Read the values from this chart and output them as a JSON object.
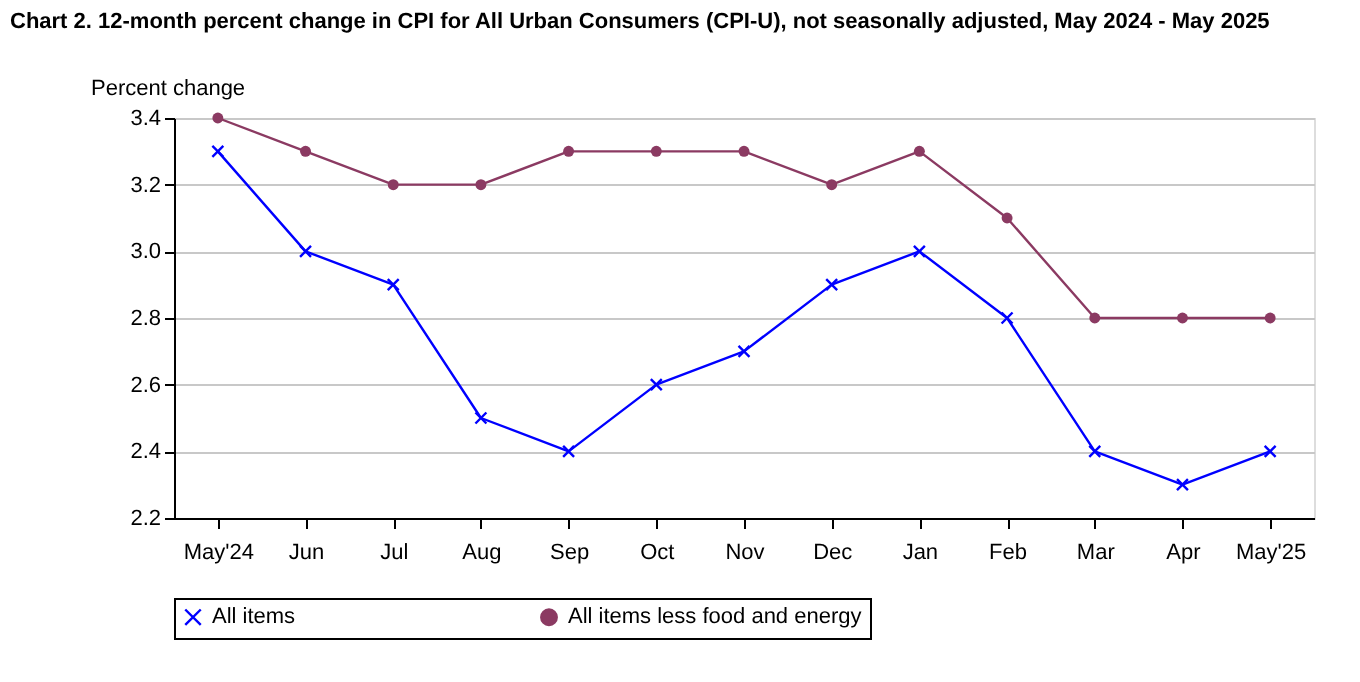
{
  "chart_data": {
    "type": "line",
    "title": "Chart 2. 12-month percent change in CPI for All Urban Consumers (CPI-U), not seasonally adjusted, May 2024 - May 2025",
    "ylabel": "Percent change",
    "categories": [
      "May'24",
      "Jun",
      "Jul",
      "Aug",
      "Sep",
      "Oct",
      "Nov",
      "Dec",
      "Jan",
      "Feb",
      "Mar",
      "Apr",
      "May'25"
    ],
    "series": [
      {
        "name": "All items",
        "color": "#0000ff",
        "marker": "cross",
        "values": [
          3.3,
          3.0,
          2.9,
          2.5,
          2.4,
          2.6,
          2.7,
          2.9,
          3.0,
          2.8,
          2.4,
          2.3,
          2.4
        ]
      },
      {
        "name": "All items less food and energy",
        "color": "#8b3a62",
        "marker": "circle",
        "values": [
          3.4,
          3.3,
          3.2,
          3.2,
          3.3,
          3.3,
          3.3,
          3.2,
          3.3,
          3.1,
          2.8,
          2.8,
          2.8
        ]
      }
    ],
    "ylim": [
      2.2,
      3.4
    ],
    "yticks": [
      2.2,
      2.4,
      2.6,
      2.8,
      {
        "value": 3,
        "label": "3.0"
      },
      3.2,
      3.4
    ],
    "grid": "y",
    "legend": "bottom"
  }
}
